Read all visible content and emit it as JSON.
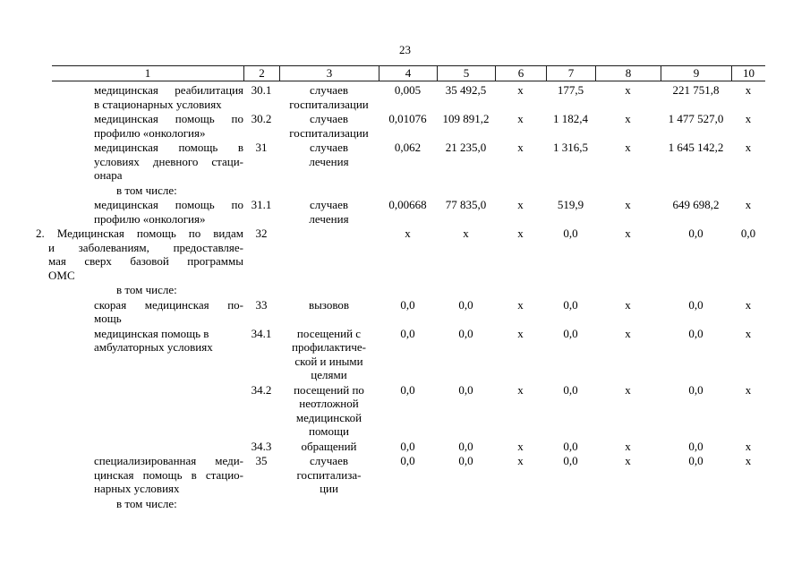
{
  "page_number": "23",
  "table": {
    "column_headers": [
      "1",
      "2",
      "3",
      "4",
      "5",
      "6",
      "7",
      "8",
      "9",
      "10"
    ],
    "rows": [
      {
        "type": "item",
        "indent": "sub",
        "justify": true,
        "label_lines": [
          "медицинская реабилитация",
          "в стационарных условиях"
        ],
        "row_num": "30.1",
        "unit_lines": [
          "случаев",
          "госпитализации"
        ],
        "values": [
          "0,005",
          "35 492,5",
          "x",
          "177,5",
          "x",
          "221 751,8",
          "x"
        ]
      },
      {
        "type": "item",
        "indent": "sub",
        "justify": true,
        "label_lines": [
          "медицинская помощь по",
          "профилю «онкология»"
        ],
        "row_num": "30.2",
        "unit_lines": [
          "случаев",
          "госпитализации"
        ],
        "values": [
          "0,01076",
          "109 891,2",
          "x",
          "1 182,4",
          "x",
          "1 477 527,0",
          "x"
        ]
      },
      {
        "type": "item",
        "indent": "sub",
        "justify": true,
        "label_lines": [
          "медицинская помощь в",
          "условиях дневного стаци-",
          "онара"
        ],
        "row_num": "31",
        "unit_lines": [
          "случаев",
          "лечения"
        ],
        "values": [
          "0,062",
          "21 235,0",
          "x",
          "1 316,5",
          "x",
          "1 645 142,2",
          "x"
        ]
      },
      {
        "type": "note",
        "label": "в том числе:"
      },
      {
        "type": "item",
        "indent": "sub",
        "justify": true,
        "label_lines": [
          "медицинская помощь по",
          "профилю «онкология»"
        ],
        "row_num": "31.1",
        "unit_lines": [
          "случаев",
          "лечения"
        ],
        "values": [
          "0,00668",
          "77 835,0",
          "x",
          "519,9",
          "x",
          "649 698,2",
          "x"
        ]
      },
      {
        "type": "item",
        "indent": "section",
        "justify": true,
        "label_lines": [
          "2. Медицинская помощь по видам",
          "и заболеваниям, предоставляе-",
          "мая сверх базовой программы",
          "ОМС"
        ],
        "row_num": "32",
        "unit_lines": [],
        "values": [
          "x",
          "x",
          "x",
          "0,0",
          "x",
          "0,0",
          "0,0"
        ]
      },
      {
        "type": "note",
        "label": "в том числе:"
      },
      {
        "type": "item",
        "indent": "sub",
        "justify": true,
        "label_lines": [
          "скорая медицинская по-",
          "мощь"
        ],
        "row_num": "33",
        "unit_lines": [
          "вызовов"
        ],
        "values": [
          "0,0",
          "0,0",
          "x",
          "0,0",
          "x",
          "0,0",
          "x"
        ]
      },
      {
        "type": "item",
        "indent": "sub",
        "justify": false,
        "label_lines": [
          "медицинская помощь в",
          "амбулаторных условиях"
        ],
        "row_num": "34.1",
        "unit_lines": [
          "посещений с",
          "профилактиче-",
          "ской и иными",
          "целями"
        ],
        "values": [
          "0,0",
          "0,0",
          "x",
          "0,0",
          "x",
          "0,0",
          "x"
        ]
      },
      {
        "type": "item",
        "indent": "sub",
        "justify": false,
        "label_lines": [],
        "row_num": "34.2",
        "unit_lines": [
          "посещений по",
          "неотложной",
          "медицинской",
          "помощи"
        ],
        "values": [
          "0,0",
          "0,0",
          "x",
          "0,0",
          "x",
          "0,0",
          "x"
        ]
      },
      {
        "type": "item",
        "indent": "sub",
        "justify": false,
        "label_lines": [],
        "row_num": "34.3",
        "unit_lines": [
          "обращений"
        ],
        "values": [
          "0,0",
          "0,0",
          "x",
          "0,0",
          "x",
          "0,0",
          "x"
        ]
      },
      {
        "type": "item",
        "indent": "sub",
        "justify": true,
        "label_lines": [
          "специализированная меди-",
          "цинская помощь в стацио-",
          "нарных условиях"
        ],
        "row_num": "35",
        "unit_lines": [
          "случаев",
          "госпитализа-",
          "ции"
        ],
        "values": [
          "0,0",
          "0,0",
          "x",
          "0,0",
          "x",
          "0,0",
          "x"
        ]
      },
      {
        "type": "note",
        "label": "в том числе:"
      }
    ]
  }
}
